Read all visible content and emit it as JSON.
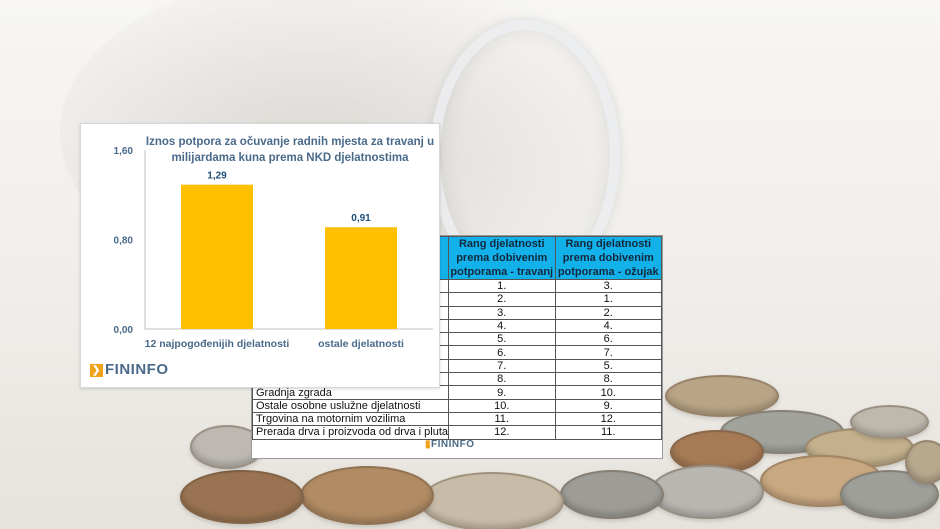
{
  "chart_data": {
    "type": "bar",
    "title": "Iznos potpora za očuvanje radnih mjesta za travanj u milijardama kuna prema NKD djelatnostima",
    "categories": [
      "12 najpogođenijih djelatnosti",
      "ostale djelatnosti"
    ],
    "values": [
      1.29,
      0.91
    ],
    "value_labels": [
      "1,29",
      "0,91"
    ],
    "ylim": [
      0,
      1.6
    ],
    "yticks": [
      0,
      0.8,
      1.6
    ],
    "ytick_labels": [
      "0,00",
      "0,80",
      "1,60"
    ],
    "bar_color": "#FFC000",
    "grid": false,
    "xlabel": "",
    "ylabel": ""
  },
  "chart_logo": "FININFO",
  "table": {
    "headers": [
      "Rang djelatnosti prema dobivenim potporama - travanj",
      "Rang djelatnosti prema dobivenim potporama - ožujak"
    ],
    "rows": [
      {
        "name": "",
        "travanj": "1.",
        "ozujak": "3."
      },
      {
        "name": "",
        "travanj": "2.",
        "ozujak": "1."
      },
      {
        "name": "",
        "travanj": "3.",
        "ozujak": "2."
      },
      {
        "name": "",
        "travanj": "4.",
        "ozujak": "4."
      },
      {
        "name": "",
        "travanj": "5.",
        "ozujak": "6."
      },
      {
        "name": "",
        "travanj": "6.",
        "ozujak": "7."
      },
      {
        "name": "",
        "travanj": "7.",
        "ozujak": "5."
      },
      {
        "name": "",
        "travanj": "8.",
        "ozujak": "8."
      },
      {
        "name": "Gradnja zgrada",
        "travanj": "9.",
        "ozujak": "10."
      },
      {
        "name": "Ostale osobne uslužne djelatnosti",
        "travanj": "10.",
        "ozujak": "9."
      },
      {
        "name": "Trgovina na motornim vozilima",
        "travanj": "11.",
        "ozujak": "12."
      },
      {
        "name": "Prerada drva i proizvoda od drva i pluta",
        "travanj": "12.",
        "ozujak": "11."
      }
    ],
    "logo": "FININFO"
  },
  "colors": {
    "header_bg": "#12B1EA",
    "title_text": "#4A6A8A",
    "value_text": "#1F4E79",
    "logo_mark": "#F0A21B"
  }
}
